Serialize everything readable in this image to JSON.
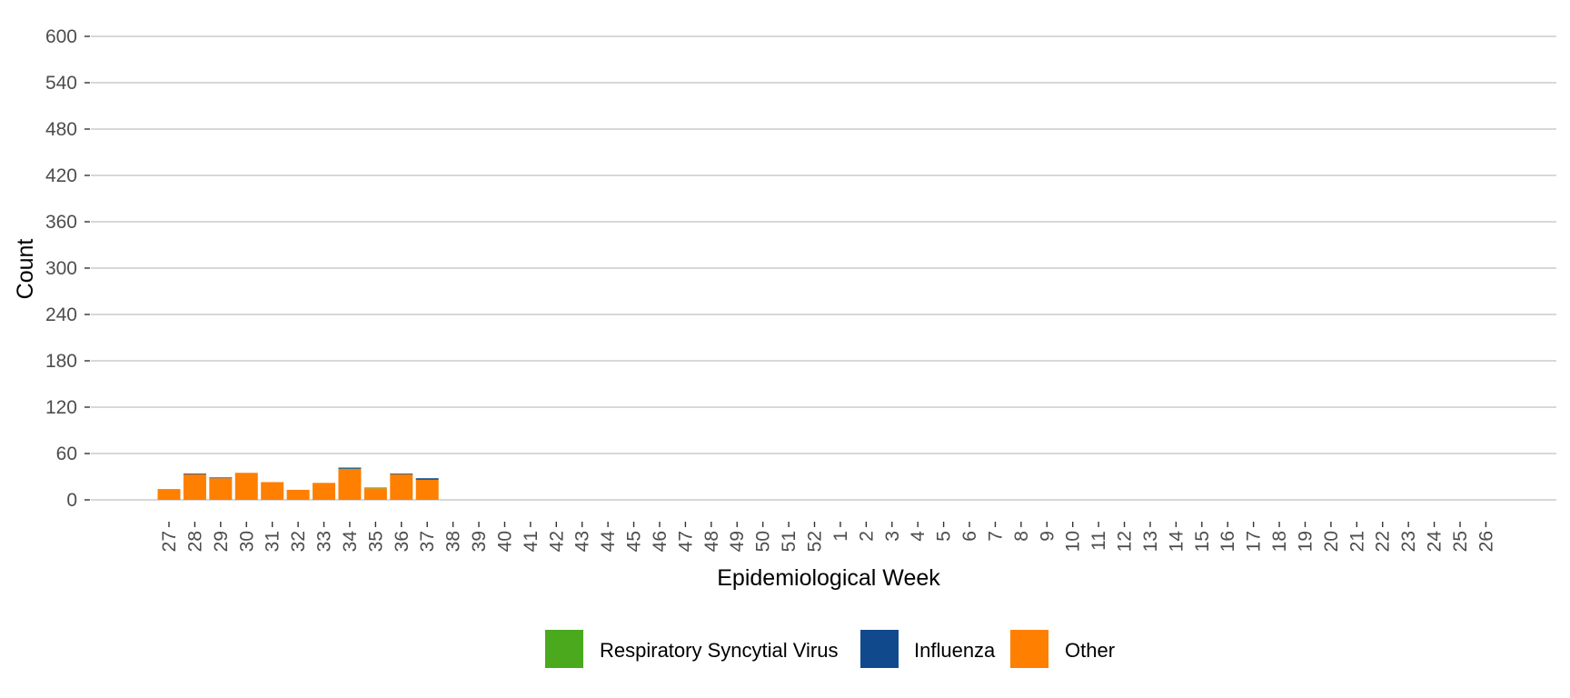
{
  "chart_data": {
    "type": "bar",
    "stacked": true,
    "xlabel": "Epidemiological Week",
    "ylabel": "Count",
    "ylim": [
      0,
      600
    ],
    "yticks": [
      0,
      60,
      120,
      180,
      240,
      300,
      360,
      420,
      480,
      540,
      600
    ],
    "grid": "horizontal",
    "legend_position": "bottom",
    "categories": [
      "27",
      "28",
      "29",
      "30",
      "31",
      "32",
      "33",
      "34",
      "35",
      "36",
      "37",
      "38",
      "39",
      "40",
      "41",
      "42",
      "43",
      "44",
      "45",
      "46",
      "47",
      "48",
      "49",
      "50",
      "51",
      "52",
      "1",
      "2",
      "3",
      "4",
      "5",
      "6",
      "7",
      "8",
      "9",
      "10",
      "11",
      "12",
      "13",
      "14",
      "15",
      "16",
      "17",
      "18",
      "19",
      "20",
      "21",
      "22",
      "23",
      "24",
      "25",
      "26"
    ],
    "series": [
      {
        "name": "Respiratory Syncytial Virus",
        "color": "#4aa91c",
        "values": [
          0,
          0,
          0,
          0,
          0,
          0,
          0,
          1,
          1,
          0,
          0,
          0,
          0,
          0,
          0,
          0,
          0,
          0,
          0,
          0,
          0,
          0,
          0,
          0,
          0,
          0,
          0,
          0,
          0,
          0,
          0,
          0,
          0,
          0,
          0,
          0,
          0,
          0,
          0,
          0,
          0,
          0,
          0,
          0,
          0,
          0,
          0,
          0,
          0,
          0,
          0,
          0
        ]
      },
      {
        "name": "Influenza",
        "color": "#114a8c",
        "values": [
          0,
          1,
          1,
          0,
          0,
          0,
          0,
          1,
          0,
          1,
          2,
          0,
          0,
          0,
          0,
          0,
          0,
          0,
          0,
          0,
          0,
          0,
          0,
          0,
          0,
          0,
          0,
          0,
          0,
          0,
          0,
          0,
          0,
          0,
          0,
          0,
          0,
          0,
          0,
          0,
          0,
          0,
          0,
          0,
          0,
          0,
          0,
          0,
          0,
          0,
          0,
          0
        ]
      },
      {
        "name": "Other",
        "color": "#ff7f00",
        "values": [
          14,
          33,
          28,
          35,
          23,
          13,
          22,
          40,
          15,
          33,
          26,
          0,
          0,
          0,
          0,
          0,
          0,
          0,
          0,
          0,
          0,
          0,
          0,
          0,
          0,
          0,
          0,
          0,
          0,
          0,
          0,
          0,
          0,
          0,
          0,
          0,
          0,
          0,
          0,
          0,
          0,
          0,
          0,
          0,
          0,
          0,
          0,
          0,
          0,
          0,
          0,
          0
        ]
      }
    ]
  }
}
